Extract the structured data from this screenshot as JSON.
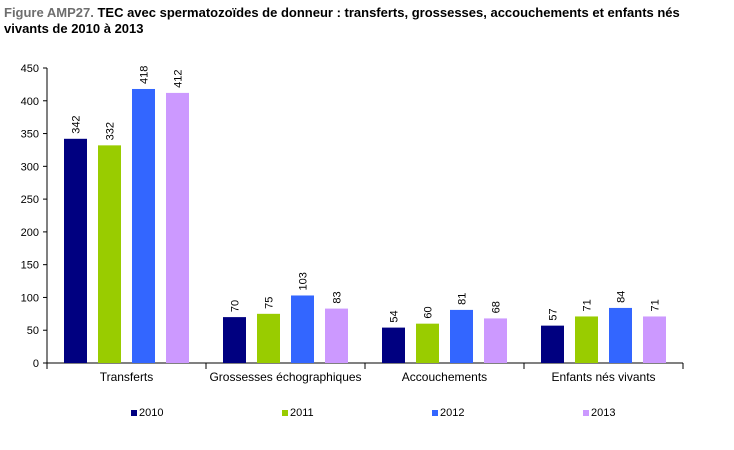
{
  "title": {
    "prefix": "Figure AMP27.",
    "text": "TEC avec spermatozoïdes de donneur : transferts, grossesses, accouchements et enfants nés vivants de 2010 à 2013"
  },
  "chart_data": {
    "type": "bar",
    "categories": [
      "Transferts",
      "Grossesses échographiques",
      "Accouchements",
      "Enfants nés vivants"
    ],
    "series": [
      {
        "name": "2010",
        "color": "#000080",
        "values": [
          342,
          70,
          54,
          57
        ]
      },
      {
        "name": "2011",
        "color": "#99cc00",
        "values": [
          332,
          75,
          60,
          71
        ]
      },
      {
        "name": "2012",
        "color": "#3366ff",
        "values": [
          418,
          103,
          81,
          84
        ]
      },
      {
        "name": "2013",
        "color": "#cc99ff",
        "values": [
          412,
          83,
          68,
          71
        ]
      }
    ],
    "ylim": [
      0,
      450
    ],
    "yticks": [
      0,
      50,
      100,
      150,
      200,
      250,
      300,
      350,
      400,
      450
    ],
    "grid": false,
    "legend_position": "bottom",
    "data_labels": true
  }
}
